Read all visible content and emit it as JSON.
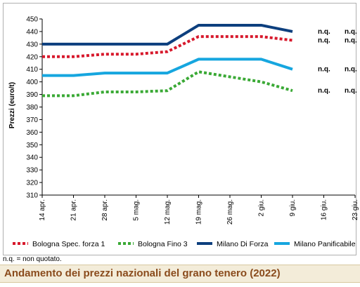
{
  "chart_data": {
    "type": "line",
    "title": "Andamento dei prezzi nazionali del grano tenero (2022)",
    "ylabel": "Prezzi (euro/t)",
    "xlabel": "",
    "ylim": [
      310,
      450
    ],
    "yticks": [
      310,
      320,
      330,
      340,
      350,
      360,
      370,
      380,
      390,
      400,
      410,
      420,
      430,
      440,
      450
    ],
    "categories": [
      "14 apr.",
      "21 apr.",
      "28 apr.",
      "5 mag.",
      "12 mag.",
      "19 mag.",
      "26 mag.",
      "2 giu.",
      "9 giu.",
      "16 giu.",
      "23 giu."
    ],
    "grid": false,
    "legend_position": "bottom",
    "series": [
      {
        "name": "Bologna Spec. forza 1",
        "style": "dotted",
        "color": "#d7192c",
        "values": [
          420,
          420,
          422,
          422,
          424,
          436,
          436,
          436,
          433,
          null,
          null
        ],
        "end_labels": [
          "n.q.",
          "n.q."
        ]
      },
      {
        "name": "Bologna Fino 3",
        "style": "dotted",
        "color": "#3aa935",
        "values": [
          389,
          389,
          392,
          392,
          393,
          408,
          404,
          400,
          393,
          null,
          null
        ],
        "end_labels": [
          "n.q.",
          "n.q."
        ]
      },
      {
        "name": "Milano Di Forza",
        "style": "solid",
        "color": "#0d3f7e",
        "values": [
          430,
          430,
          430,
          430,
          430,
          445,
          445,
          445,
          440,
          null,
          null
        ],
        "end_labels": [
          "n.q.",
          "n.q."
        ]
      },
      {
        "name": "Milano Panificabile",
        "style": "solid",
        "color": "#16a6df",
        "values": [
          405,
          405,
          407,
          407,
          407,
          418,
          418,
          418,
          410,
          null,
          null
        ],
        "end_labels": [
          "n.q.",
          "n.q."
        ]
      }
    ],
    "note": "n.q. = non quotato."
  }
}
